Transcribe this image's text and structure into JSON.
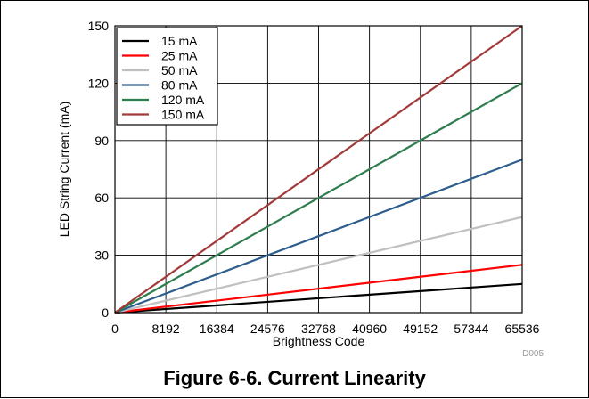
{
  "figure": {
    "caption": "Figure 6-6. Current Linearity",
    "code": "D005"
  },
  "chart_data": {
    "type": "line",
    "xlabel": "Brightness Code",
    "ylabel": "LED String Current (mA)",
    "xlim": [
      0,
      65536
    ],
    "ylim": [
      0,
      150
    ],
    "xticks": [
      0,
      8192,
      16384,
      24576,
      32768,
      40960,
      49152,
      57344,
      65536
    ],
    "yticks": [
      0,
      30,
      60,
      90,
      120,
      150
    ],
    "grid": true,
    "legend": "top-left",
    "series": [
      {
        "name": "15 mA",
        "color": "#000000",
        "x": [
          0,
          65536
        ],
        "y": [
          0,
          15
        ]
      },
      {
        "name": "25 mA",
        "color": "#ff0000",
        "x": [
          0,
          65536
        ],
        "y": [
          0,
          25
        ]
      },
      {
        "name": "50 mA",
        "color": "#c0c0c0",
        "x": [
          0,
          65536
        ],
        "y": [
          0,
          50
        ]
      },
      {
        "name": "80 mA",
        "color": "#2e5e8e",
        "x": [
          0,
          65536
        ],
        "y": [
          0,
          80
        ]
      },
      {
        "name": "120 mA",
        "color": "#2e7d4f",
        "x": [
          0,
          65536
        ],
        "y": [
          0,
          120
        ]
      },
      {
        "name": "150 mA",
        "color": "#a33a3a",
        "x": [
          0,
          65536
        ],
        "y": [
          0,
          150
        ]
      }
    ]
  }
}
